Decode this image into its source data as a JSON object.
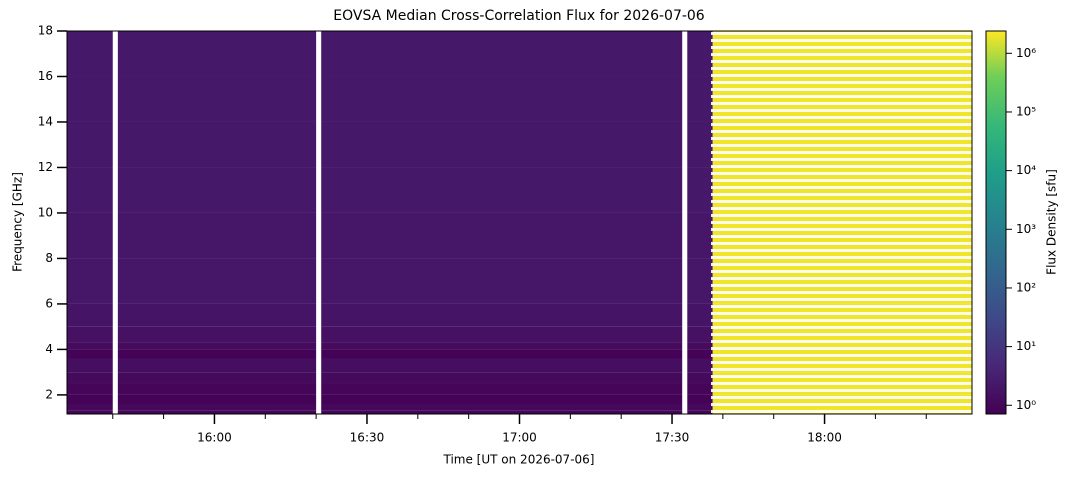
{
  "chart_data": {
    "type": "heatmap",
    "title": "EOVSA Median Cross-Correlation Flux for 2026-07-06",
    "x_label": "Time [UT on 2026-07-06]",
    "y_label": "Frequency [GHz]",
    "colorbar_label": "Flux Density [sfu]",
    "colormap": "viridis",
    "color_scale": "log",
    "xlim": [
      "15:31",
      "18:29"
    ],
    "xticks": [
      "16:00",
      "16:30",
      "17:00",
      "17:30",
      "18:00"
    ],
    "xminor_ticks": [
      "15:40",
      "15:50",
      "16:10",
      "16:20",
      "16:40",
      "16:50",
      "17:10",
      "17:20",
      "17:40",
      "17:50",
      "18:10",
      "18:20"
    ],
    "ylim": [
      1.16,
      18
    ],
    "yticks": [
      2,
      4,
      6,
      8,
      10,
      12,
      14,
      16,
      18
    ],
    "clim": [
      0.71,
      2400000
    ],
    "cticks": [
      {
        "value": 1,
        "label": "10⁰"
      },
      {
        "value": 10,
        "label": "10¹"
      },
      {
        "value": 100,
        "label": "10²"
      },
      {
        "value": 1000,
        "label": "10³"
      },
      {
        "value": 10000,
        "label": "10⁴"
      },
      {
        "value": 100000,
        "label": "10⁵"
      },
      {
        "value": 1000000,
        "label": "10⁶"
      }
    ],
    "x_edges": [
      "15:31",
      "15:40",
      "15:41",
      "16:20",
      "16:21",
      "17:32",
      "17:33",
      "17:38",
      "18:29"
    ],
    "y_edges": [
      1.16,
      1.3,
      1.6,
      2.0,
      2.5,
      3.0,
      3.6,
      4.0,
      4.3,
      5,
      6,
      8,
      10,
      12,
      14,
      16,
      18
    ],
    "values": [
      [
        0.9,
        null,
        0.9,
        null,
        0.9,
        null,
        0.9,
        2000000
      ],
      [
        1.0,
        null,
        1.0,
        null,
        1.0,
        null,
        1.0,
        2000000
      ],
      [
        0.8,
        null,
        0.8,
        null,
        0.8,
        null,
        0.8,
        2000000
      ],
      [
        0.9,
        null,
        0.9,
        null,
        0.9,
        null,
        0.9,
        2000000
      ],
      [
        1.1,
        null,
        1.1,
        null,
        1.1,
        null,
        1.1,
        2000000
      ],
      [
        1.3,
        null,
        1.3,
        null,
        1.3,
        null,
        1.3,
        2000000
      ],
      [
        0.8,
        null,
        0.8,
        null,
        0.8,
        null,
        0.8,
        2000000
      ],
      [
        1.2,
        null,
        1.2,
        null,
        1.2,
        null,
        1.2,
        2000000
      ],
      [
        1.5,
        null,
        1.5,
        null,
        1.5,
        null,
        1.5,
        2000000
      ],
      [
        1.8,
        null,
        1.8,
        null,
        1.8,
        null,
        1.8,
        2000000
      ],
      [
        2,
        null,
        2,
        null,
        2,
        null,
        2,
        2000000
      ],
      [
        2,
        null,
        2,
        null,
        2,
        null,
        2,
        2000000
      ],
      [
        2.2,
        null,
        2.2,
        null,
        2.2,
        null,
        2.2,
        2000000
      ],
      [
        2.2,
        null,
        2.2,
        null,
        2.2,
        null,
        2.2,
        2000000
      ],
      [
        2.2,
        null,
        2.2,
        null,
        2.2,
        null,
        2.2,
        2000000
      ],
      [
        2.2,
        null,
        2.2,
        null,
        2.2,
        null,
        2.2,
        2000000
      ]
    ]
  }
}
